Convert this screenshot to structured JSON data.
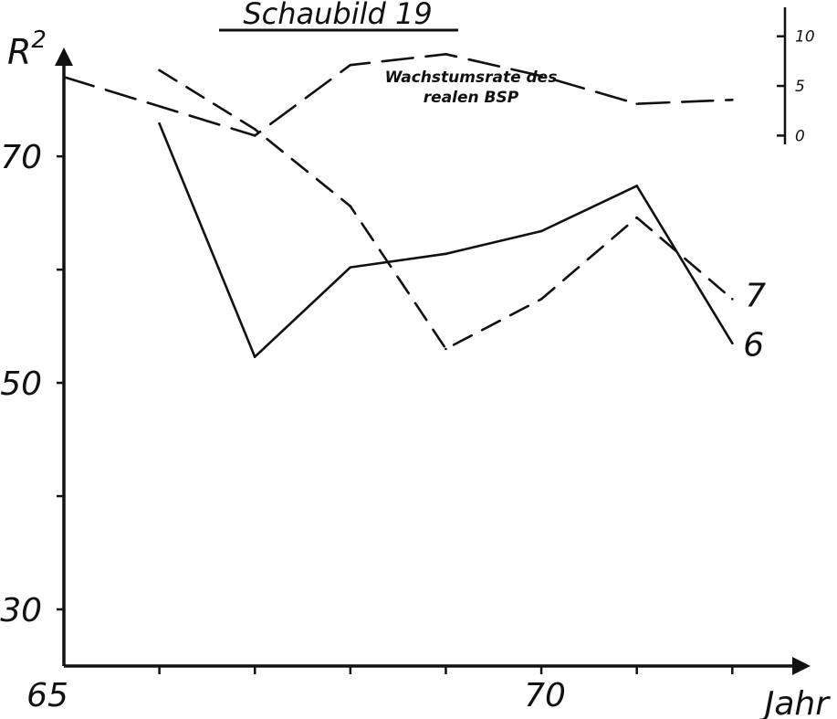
{
  "chart_data": {
    "type": "line",
    "title": "Schaubild 19",
    "ylabel_main": "R",
    "ylabel_sup": "2",
    "xlabel": "Jahr",
    "x_ticks": [
      65,
      66,
      67,
      68,
      69,
      70,
      71,
      72
    ],
    "x_tick_labels": [
      {
        "x": 65,
        "label": "65"
      },
      {
        "x": 70,
        "label": "70"
      }
    ],
    "xlim": [
      65,
      72.8
    ],
    "y_ticks": [
      30,
      40,
      50,
      60,
      70
    ],
    "y_tick_labels": [
      {
        "y": 30,
        "label": "30"
      },
      {
        "y": 50,
        "label": "50"
      },
      {
        "y": 70,
        "label": "70"
      }
    ],
    "ylim": [
      25,
      83
    ],
    "series": [
      {
        "name": "6",
        "style": "solid",
        "x": [
          66,
          67,
          68,
          69,
          70,
          71,
          72
        ],
        "y": [
          72.9,
          52.3,
          60.2,
          61.4,
          63.4,
          67.4,
          53.5
        ]
      },
      {
        "name": "7",
        "style": "dashed",
        "x": [
          66,
          67,
          68,
          69,
          70,
          71,
          72
        ],
        "y": [
          77.6,
          72.4,
          65.6,
          53.0,
          57.4,
          64.6,
          57.4
        ]
      }
    ],
    "secondary": {
      "label_line1": "Wachstumsrate des",
      "label_line2": "realen BSP",
      "tick_labels": [
        {
          "v": 10,
          "label": "10"
        },
        {
          "v": 5,
          "label": "5"
        },
        {
          "v": 0,
          "label": "0"
        }
      ],
      "ylim": [
        -3,
        12
      ],
      "x": [
        65,
        67,
        68,
        69,
        70,
        71,
        72
      ],
      "y": [
        5.9,
        0,
        7.1,
        8.2,
        6,
        3.2,
        3.6
      ]
    }
  }
}
